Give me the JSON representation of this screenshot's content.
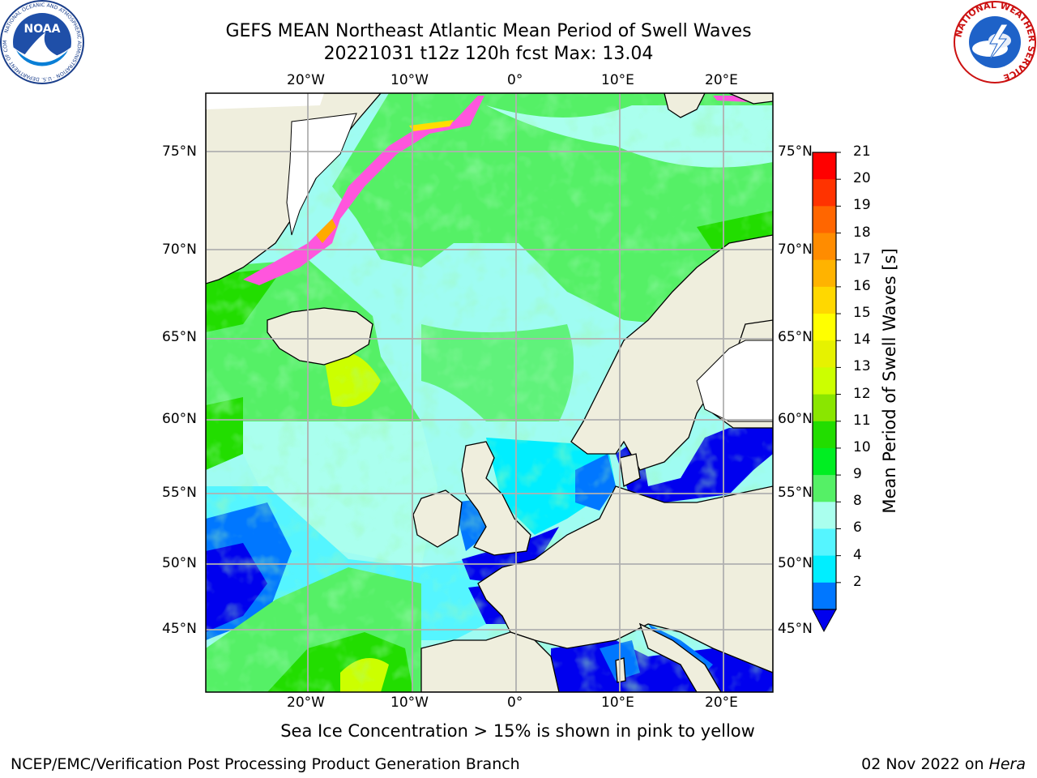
{
  "title": {
    "line1": "GEFS MEAN Northeast Atlantic Mean Period of Swell Waves",
    "line2": "20221031 t12z 120h fcst   Max: 13.04"
  },
  "map": {
    "lon_ticks": [
      "20°W",
      "10°W",
      "0°",
      "10°E",
      "20°E"
    ],
    "lat_ticks": [
      "75°N",
      "70°N",
      "65°N",
      "60°N",
      "55°N",
      "50°N",
      "45°N"
    ],
    "colors": {
      "land": "#efeedd",
      "coast": "#000000",
      "grid": "#b0b0b0"
    }
  },
  "colorbar": {
    "label": "Mean Period of Swell Waves [s]",
    "ticks": [
      "21",
      "20",
      "19",
      "18",
      "17",
      "16",
      "15",
      "14",
      "13",
      "12",
      "11",
      "10",
      "9",
      "8",
      "6",
      "4",
      "2"
    ],
    "colors": [
      "#ff0000",
      "#ff3300",
      "#ff6600",
      "#ff8c00",
      "#ffb300",
      "#ffd800",
      "#ffff00",
      "#e6f200",
      "#ccff00",
      "#8ae600",
      "#22dd00",
      "#00ee22",
      "#55f066",
      "#aaffee",
      "#55f5ff",
      "#00eeff",
      "#0077ff"
    ],
    "extend_color": "#0000ee"
  },
  "caption": "Sea Ice Concentration > 15% is shown in pink to yellow",
  "footer": {
    "left": "NCEP/EMC/Verification Post Processing Product Generation Branch",
    "date": "02 Nov 2022 on ",
    "machine": "Hera"
  },
  "logos": {
    "noaa": {
      "text": "NOAA",
      "ring": "NATIONAL OCEANIC AND ATMOSPHERIC ADMINISTRATION",
      "ring_bottom": "U.S. DEPARTMENT OF COMMERCE"
    },
    "nws": {
      "ring": "NATIONAL WEATHER SERVICE"
    }
  }
}
